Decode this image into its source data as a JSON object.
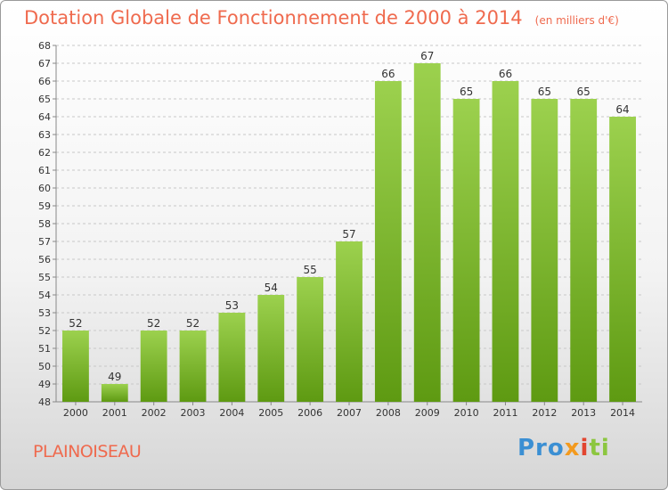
{
  "title": "Dotation Globale de Fonctionnement de 2000 à 2014",
  "unit": "(en milliers d'€)",
  "commune": "PLAINOISEAU",
  "logo": {
    "part1": "Pro",
    "part2": "x",
    "part3": "i",
    "part4": "ti"
  },
  "colors": {
    "accent": "#ef6a4e",
    "bar_top": "#9cd14e",
    "bar_bottom": "#5e9a12"
  },
  "chart_data": {
    "type": "bar",
    "categories": [
      "2000",
      "2001",
      "2002",
      "2003",
      "2004",
      "2005",
      "2006",
      "2007",
      "2008",
      "2009",
      "2010",
      "2011",
      "2012",
      "2013",
      "2014"
    ],
    "values": [
      52,
      49,
      52,
      52,
      53,
      54,
      55,
      57,
      66,
      67,
      65,
      66,
      65,
      65,
      64
    ],
    "ylim": [
      48,
      68
    ],
    "yticks": [
      "48",
      "49",
      "50",
      "51",
      "52",
      "53",
      "54",
      "55",
      "56",
      "57",
      "58",
      "59",
      "60",
      "61",
      "62",
      "63",
      "64",
      "65",
      "66",
      "67",
      "68"
    ],
    "grid": true
  }
}
